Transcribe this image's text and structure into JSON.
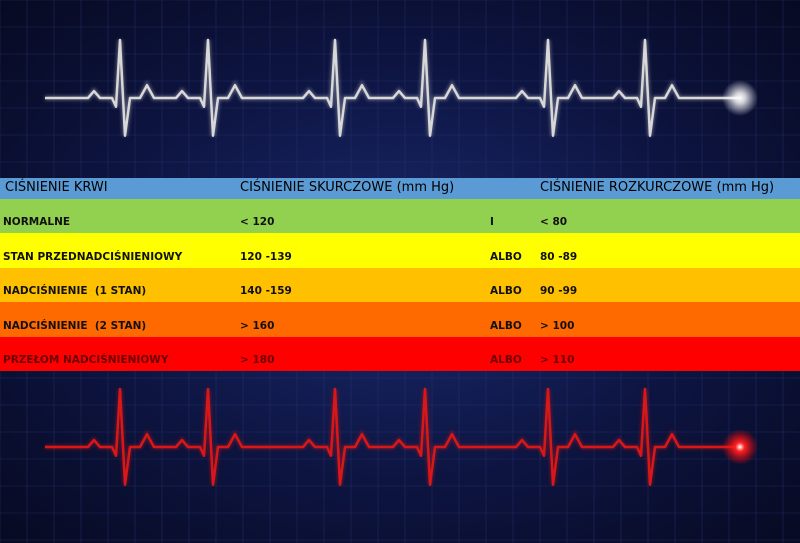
{
  "table": {
    "header": [
      "CIŚNIENIE KRWI",
      "CIŚNIENIE SKURCZOWE (mm Hg)",
      "CIŚNIENIE ROZKURCZOWE (mm Hg)"
    ],
    "rows": [
      [
        "NORMALNE",
        "< 120",
        "I",
        "< 80"
      ],
      [
        "STAN PRZEDNADCIŚNIENIOWY",
        "120 -139",
        "ALBO",
        "80 -89"
      ],
      [
        "NADCIŚNIENIE  (1 STAN)",
        "140 -159",
        "ALBO",
        "90 -99"
      ],
      [
        "NADCIŚNIENIE  (2 STAN)",
        "> 160",
        "ALBO",
        "> 100"
      ],
      [
        "PRZEŁOM NADCIŚNIENIOWY",
        "> 180",
        "ALBO",
        "> 110"
      ]
    ]
  }
}
